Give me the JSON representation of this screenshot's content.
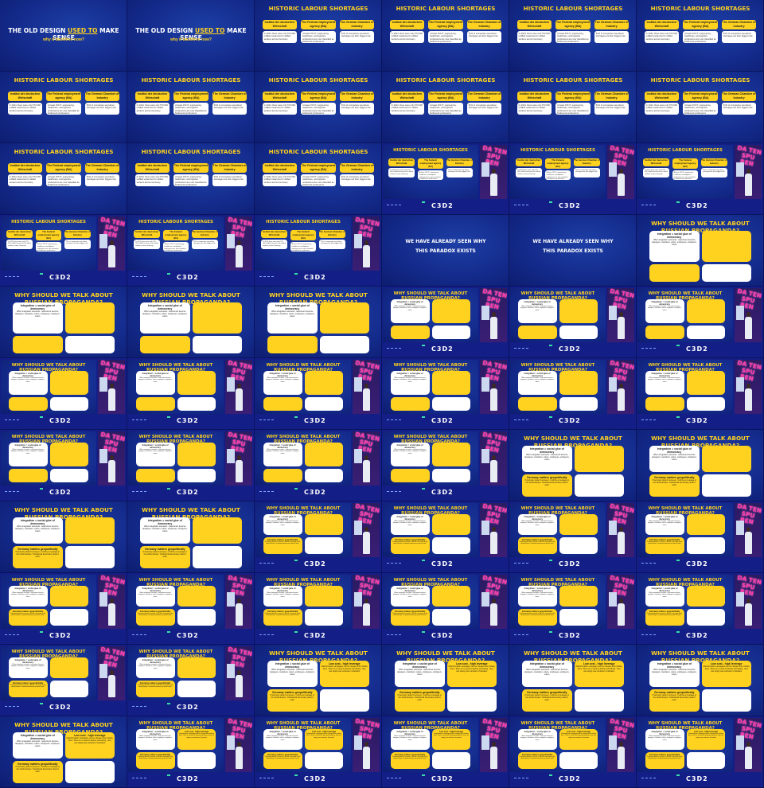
{
  "slides": {
    "old": {
      "pre": "THE OLD DESIGN ",
      "u": "USED TO",
      "post": " MAKE SENSE",
      "sub": "why it backfires now?"
    },
    "hist": {
      "title": "HISTORIC LABOUR SHORTAGES",
      "cards": [
        {
          "h": "Institut der deutschen Wirtschaft",
          "t": "In 2024, there were only 573 600 unfilled vacancies for skilled workers across Germany."
        },
        {
          "h": "The Federal employment agency (BA)",
          "t": "At least 150 IT, engineering, healthcare, and logistics professions are now classified as bottleneck professions."
        },
        {
          "h": "The German Chamber of Industry",
          "t": "51% of companies say labour shortages are their biggest risk."
        }
      ]
    },
    "paradox": {
      "l1": "WE HAVE ALREADY SEEN WHY",
      "l2": "THIS PARADOX EXISTS"
    },
    "prop": {
      "title": "WHY SHOULD WE TALK ABOUT RUSSIAN PROPAGANDA?",
      "q1h": "Integration = social glue of democracy",
      "q1t": "When integration succeeds - newcomers become taxpayers, coworkers, voters, employees, employers, voters",
      "q2h": "Low cost - high leverage",
      "q2t": "Disinformation campaigns can be cheaper than military force. There is no need to destroy something - they can simply sow confusion, frustration",
      "q3h": "Germany matters geopolitically",
      "q3t": "If Germany doesn't succeed - it will be a message to the whole Europe: 'Institutional democracy doesn't work'"
    }
  },
  "stage": {
    "logo": "C3D2",
    "neon": "DA TEN SPU REN"
  },
  "tiles": [
    {
      "k": "old",
      "m": "full"
    },
    {
      "k": "old",
      "m": "full"
    },
    {
      "k": "hist",
      "m": "full"
    },
    {
      "k": "hist",
      "m": "full"
    },
    {
      "k": "hist",
      "m": "full"
    },
    {
      "k": "hist",
      "m": "full"
    },
    {
      "k": "hist",
      "m": "full"
    },
    {
      "k": "hist",
      "m": "full"
    },
    {
      "k": "hist",
      "m": "full"
    },
    {
      "k": "hist",
      "m": "full"
    },
    {
      "k": "hist",
      "m": "full"
    },
    {
      "k": "hist",
      "m": "full"
    },
    {
      "k": "hist",
      "m": "full"
    },
    {
      "k": "hist",
      "m": "full"
    },
    {
      "k": "hist",
      "m": "full"
    },
    {
      "k": "hist",
      "m": "stage"
    },
    {
      "k": "hist",
      "m": "stage"
    },
    {
      "k": "hist",
      "m": "stage"
    },
    {
      "k": "hist",
      "m": "stage"
    },
    {
      "k": "hist",
      "m": "stage"
    },
    {
      "k": "hist",
      "m": "stage"
    },
    {
      "k": "paradox",
      "m": "full"
    },
    {
      "k": "paradox",
      "m": "full"
    },
    {
      "k": "p1",
      "m": "full"
    },
    {
      "k": "p1",
      "m": "full"
    },
    {
      "k": "p1",
      "m": "full"
    },
    {
      "k": "p1",
      "m": "full"
    },
    {
      "k": "p1",
      "m": "stage"
    },
    {
      "k": "p1",
      "m": "stage"
    },
    {
      "k": "p1",
      "m": "stage"
    },
    {
      "k": "p1",
      "m": "stage"
    },
    {
      "k": "p1",
      "m": "stage"
    },
    {
      "k": "p1",
      "m": "stage"
    },
    {
      "k": "p1",
      "m": "stage"
    },
    {
      "k": "p1",
      "m": "stage"
    },
    {
      "k": "p1",
      "m": "stage"
    },
    {
      "k": "p1",
      "m": "stage"
    },
    {
      "k": "p1",
      "m": "stage"
    },
    {
      "k": "p1",
      "m": "stage"
    },
    {
      "k": "p1",
      "m": "stage"
    },
    {
      "k": "p2",
      "m": "full"
    },
    {
      "k": "p2",
      "m": "full"
    },
    {
      "k": "p2",
      "m": "full"
    },
    {
      "k": "p2",
      "m": "full"
    },
    {
      "k": "p2",
      "m": "stage"
    },
    {
      "k": "p2",
      "m": "stage"
    },
    {
      "k": "p2",
      "m": "stage"
    },
    {
      "k": "p2",
      "m": "stage"
    },
    {
      "k": "p2",
      "m": "stage"
    },
    {
      "k": "p2",
      "m": "stage"
    },
    {
      "k": "p2",
      "m": "stage"
    },
    {
      "k": "p2",
      "m": "stage"
    },
    {
      "k": "p2",
      "m": "stage"
    },
    {
      "k": "p2",
      "m": "stage"
    },
    {
      "k": "p2",
      "m": "stage"
    },
    {
      "k": "p2",
      "m": "stage"
    },
    {
      "k": "p3",
      "m": "full"
    },
    {
      "k": "p3",
      "m": "full"
    },
    {
      "k": "p3",
      "m": "full"
    },
    {
      "k": "p3",
      "m": "full"
    },
    {
      "k": "p3",
      "m": "full"
    },
    {
      "k": "p3",
      "m": "stage"
    },
    {
      "k": "p3",
      "m": "stage"
    },
    {
      "k": "p3",
      "m": "stage"
    },
    {
      "k": "p3",
      "m": "stage"
    },
    {
      "k": "p3",
      "m": "stage"
    }
  ]
}
